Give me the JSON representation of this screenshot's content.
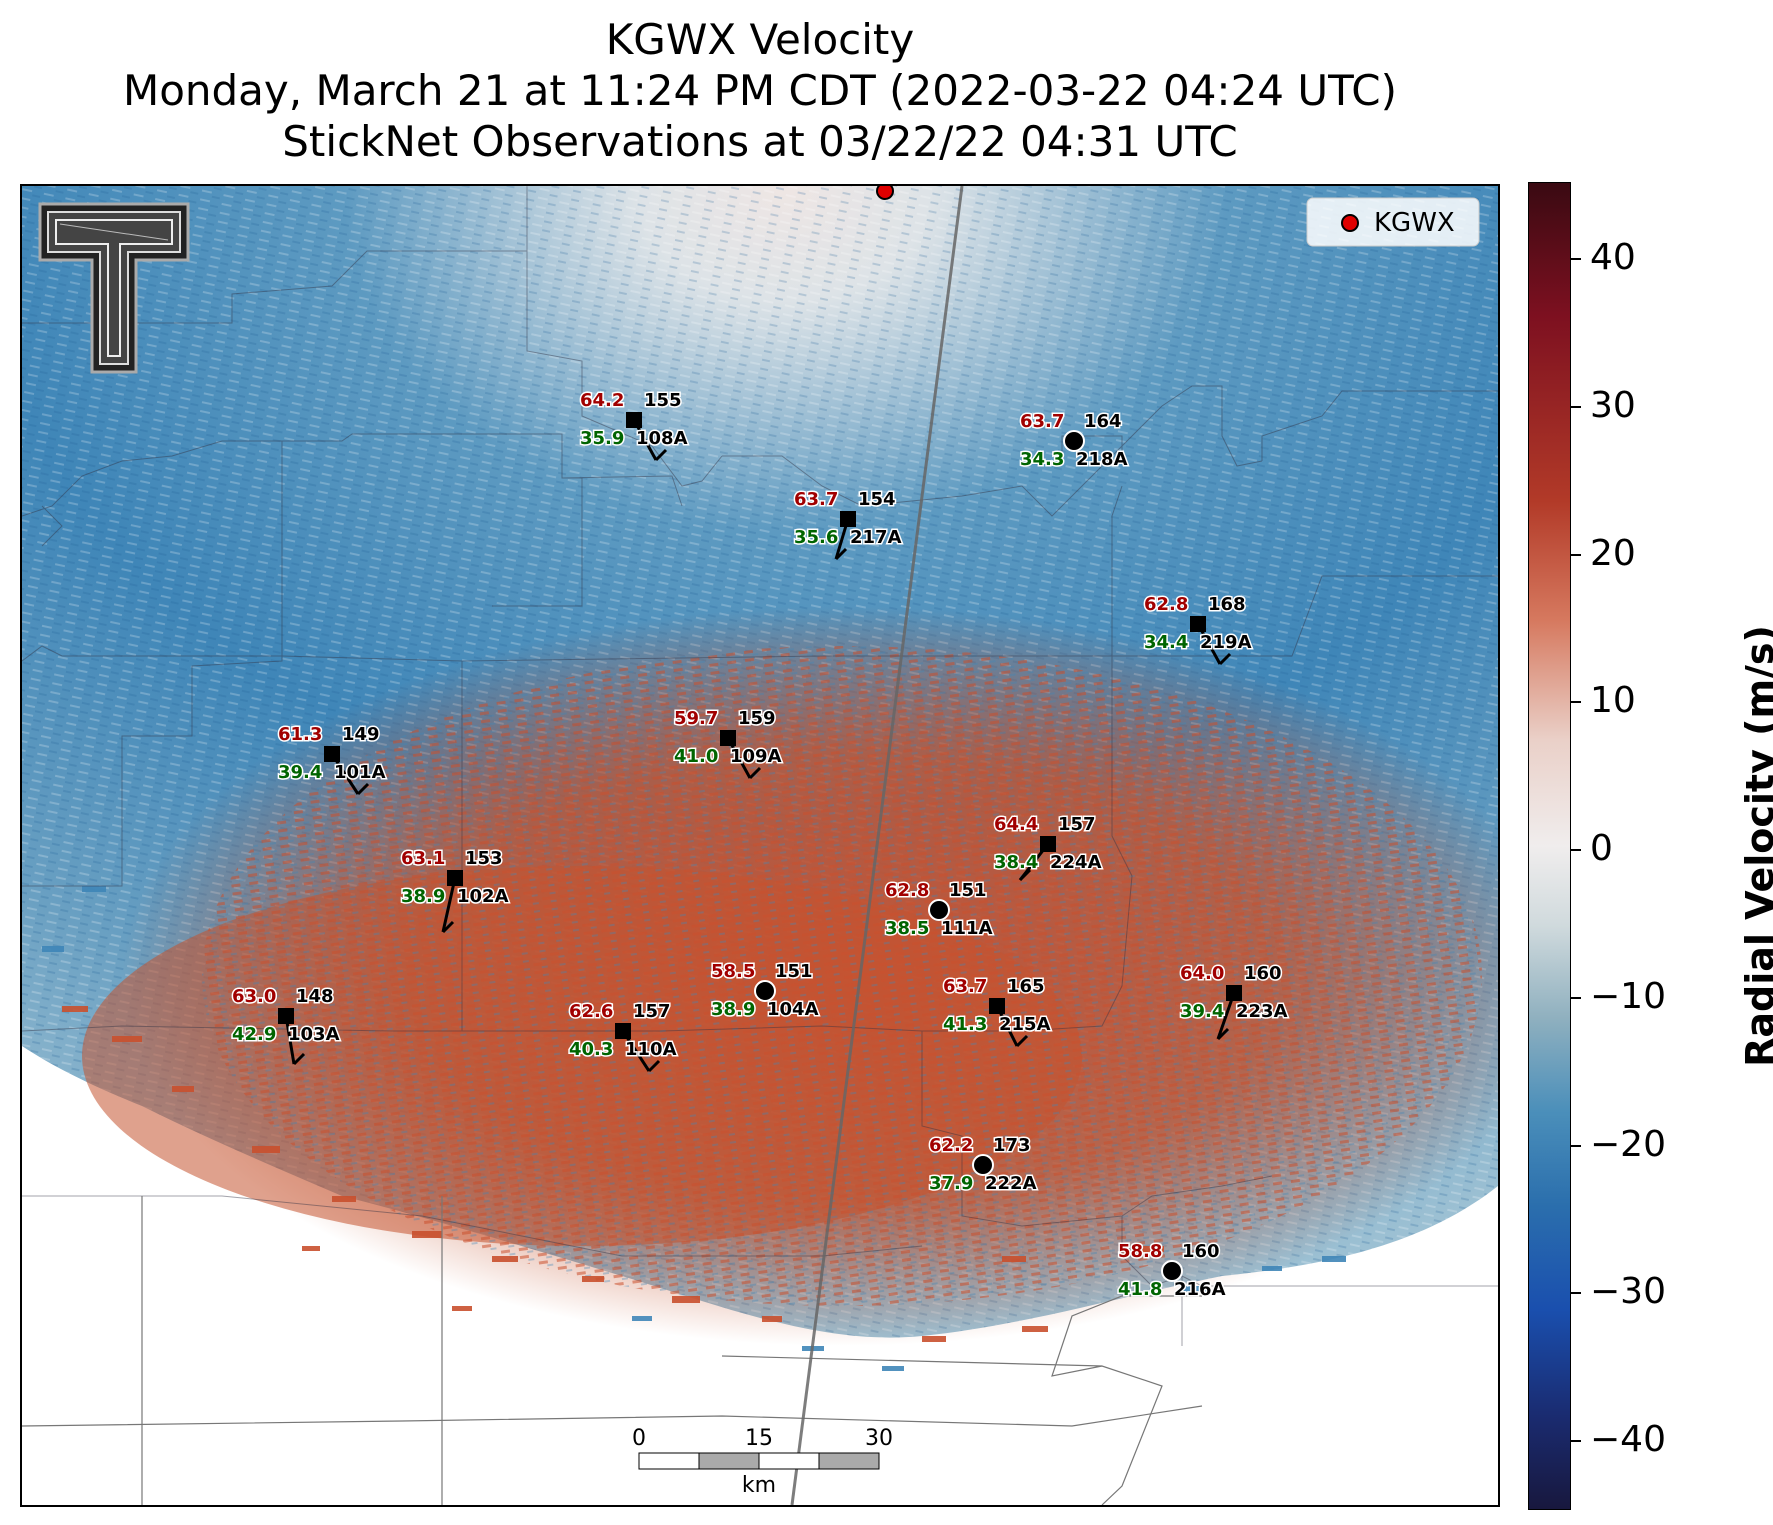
{
  "title": {
    "line1": "KGWX Velocity",
    "line2": "Monday, March 21 at 11:24 PM CDT (2022-03-22 04:24 UTC)",
    "line3": "StickNet Observations at 03/22/22 04:31 UTC"
  },
  "legend": {
    "label": "KGWX",
    "marker_color": "#e00000"
  },
  "colorbar": {
    "label": "Radial Velocity (m/s)",
    "ticks": [
      "40",
      "30",
      "20",
      "10",
      "0",
      "−10",
      "−20",
      "−30",
      "−40"
    ],
    "range": [
      -45,
      45
    ]
  },
  "scale_bar": {
    "ticks": [
      "0",
      "15",
      "30"
    ],
    "unit": "km"
  },
  "stations": [
    {
      "id": "108A",
      "temp": "64.2",
      "dew": "35.9",
      "dir": "155",
      "marker": "square"
    },
    {
      "id": "217A",
      "temp": "63.7",
      "dew": "35.6",
      "dir": "154",
      "marker": "square"
    },
    {
      "id": "218A",
      "temp": "63.7",
      "dew": "34.3",
      "dir": "164",
      "marker": "circle"
    },
    {
      "id": "219A",
      "temp": "62.8",
      "dew": "34.4",
      "dir": "168",
      "marker": "square"
    },
    {
      "id": "101A",
      "temp": "61.3",
      "dew": "39.4",
      "dir": "149",
      "marker": "square"
    },
    {
      "id": "109A",
      "temp": "59.7",
      "dew": "41.0",
      "dir": "159",
      "marker": "square"
    },
    {
      "id": "224A",
      "temp": "64.4",
      "dew": "38.4",
      "dir": "157",
      "marker": "square"
    },
    {
      "id": "102A",
      "temp": "63.1",
      "dew": "38.9",
      "dir": "153",
      "marker": "square"
    },
    {
      "id": "111A",
      "temp": "62.8",
      "dew": "38.5",
      "dir": "151",
      "marker": "circle"
    },
    {
      "id": "104A",
      "temp": "58.5",
      "dew": "38.9",
      "dir": "151",
      "marker": "circle"
    },
    {
      "id": "103A",
      "temp": "63.0",
      "dew": "42.9",
      "dir": "148",
      "marker": "square"
    },
    {
      "id": "110A",
      "temp": "62.6",
      "dew": "40.3",
      "dir": "157",
      "marker": "square"
    },
    {
      "id": "215A",
      "temp": "63.7",
      "dew": "41.3",
      "dir": "165",
      "marker": "square"
    },
    {
      "id": "223A",
      "temp": "64.0",
      "dew": "39.4",
      "dir": "160",
      "marker": "square"
    },
    {
      "id": "222A",
      "temp": "62.2",
      "dew": "37.9",
      "dir": "173",
      "marker": "circle"
    },
    {
      "id": "216A",
      "temp": "58.8",
      "dew": "41.8",
      "dir": "160",
      "marker": "circle"
    }
  ],
  "colors": {
    "temp": "#a10000",
    "dew": "#006400",
    "inbound": "#3f86b8",
    "outbound": "#c9502e"
  }
}
